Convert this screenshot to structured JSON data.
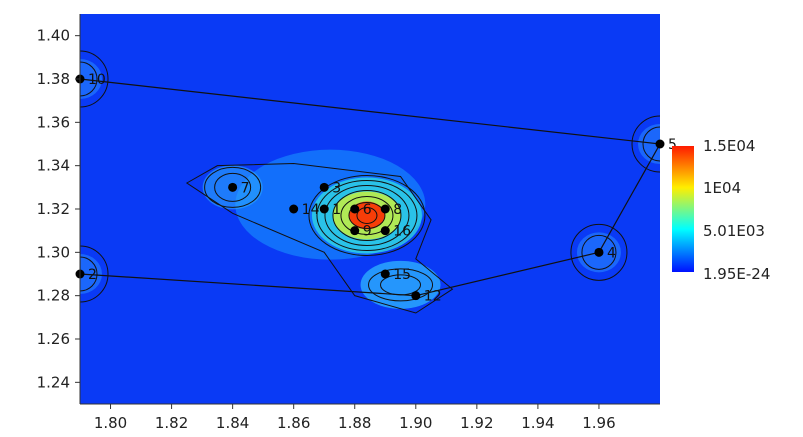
{
  "chart_data": {
    "type": "heatmap",
    "title": "",
    "xlabel": "",
    "ylabel": "",
    "xlim": [
      1.79,
      1.98
    ],
    "ylim": [
      1.23,
      1.41
    ],
    "x_ticks": [
      "1.80",
      "1.82",
      "1.84",
      "1.86",
      "1.88",
      "1.90",
      "1.92",
      "1.94",
      "1.96"
    ],
    "y_ticks": [
      "1.40",
      "1.38",
      "1.36",
      "1.34",
      "1.32",
      "1.30",
      "1.28",
      "1.26",
      "1.24"
    ],
    "colorbar": {
      "labels": [
        "1.5E04",
        "1E04",
        "5.01E03",
        "1.95E-24"
      ],
      "colors": [
        "#ff0000",
        "#ffff00",
        "#00ffff",
        "#0000ff"
      ]
    },
    "points": [
      {
        "label": "10",
        "x": 1.79,
        "y": 1.38
      },
      {
        "label": "5",
        "x": 1.98,
        "y": 1.35
      },
      {
        "label": "4",
        "x": 1.96,
        "y": 1.3
      },
      {
        "label": "12",
        "x": 1.9,
        "y": 1.28
      },
      {
        "label": "2",
        "x": 1.79,
        "y": 1.29
      },
      {
        "label": "7",
        "x": 1.84,
        "y": 1.33
      },
      {
        "label": "3",
        "x": 1.87,
        "y": 1.33
      },
      {
        "label": "14",
        "x": 1.86,
        "y": 1.32
      },
      {
        "label": "1",
        "x": 1.87,
        "y": 1.32
      },
      {
        "label": "6",
        "x": 1.88,
        "y": 1.32
      },
      {
        "label": "8",
        "x": 1.89,
        "y": 1.32
      },
      {
        "label": "16",
        "x": 1.89,
        "y": 1.31
      },
      {
        "label": "9",
        "x": 1.88,
        "y": 1.31
      },
      {
        "label": "15",
        "x": 1.89,
        "y": 1.29
      }
    ],
    "path": [
      "10",
      "5",
      "4",
      "12",
      "2",
      "10"
    ],
    "background_color": "#0a3af5"
  }
}
